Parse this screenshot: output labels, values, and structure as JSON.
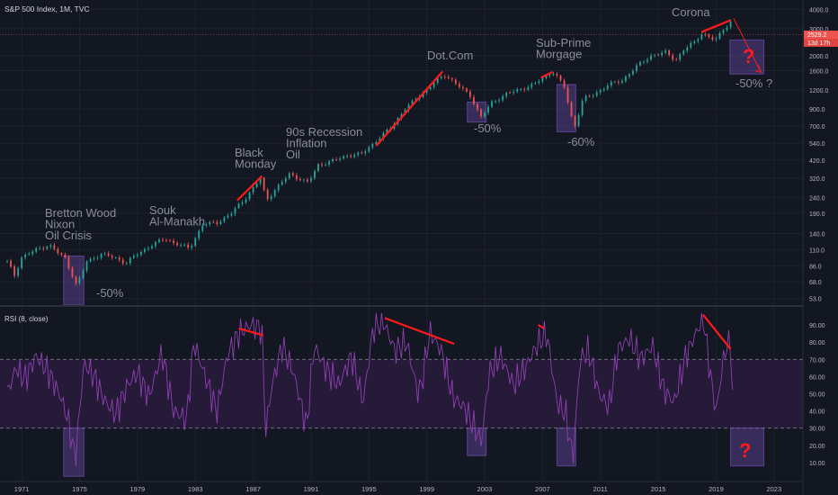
{
  "header": {
    "title": "S&P 500 Index, 1M, TVC"
  },
  "price_tag": {
    "value": "2529.2",
    "countdown": "13d 17h"
  },
  "colors": {
    "up": "#26a69a",
    "down": "#ef5350",
    "annotation": "#ff1a1a",
    "rsi_line": "#8e3fb0",
    "rsi_band": "#2a1b3d",
    "box": "#7e57c2",
    "label": "#8a8e99",
    "axis_text": "#b2b5be",
    "bg": "#131722",
    "grid": "#1e222d"
  },
  "annotations": [
    {
      "id": "bretton",
      "lines": [
        "Bretton Wood",
        "Nixon",
        "Oil Crisis"
      ]
    },
    {
      "id": "souk",
      "lines": [
        "Souk",
        "Al-Manakh"
      ]
    },
    {
      "id": "black",
      "lines": [
        "Black",
        "Monday"
      ]
    },
    {
      "id": "ninety",
      "lines": [
        "90s Recession",
        "Inflation",
        "Oil"
      ]
    },
    {
      "id": "dotcom",
      "lines": [
        "Dot.Com"
      ]
    },
    {
      "id": "subprime",
      "lines": [
        "Sub-Prime",
        "Morgage"
      ]
    },
    {
      "id": "corona",
      "lines": [
        "Corona"
      ]
    },
    {
      "id": "drop1974",
      "lines": [
        "-50%"
      ]
    },
    {
      "id": "drop2002",
      "lines": [
        "-50%"
      ]
    },
    {
      "id": "drop2008",
      "lines": [
        "-60%"
      ]
    },
    {
      "id": "drop2020",
      "lines": [
        "-50% ?"
      ]
    }
  ],
  "question_marks": [
    "?",
    "?"
  ],
  "chart_data": [
    {
      "type": "line",
      "title": "S&P 500 Index, 1M, TVC",
      "y_scale": "log",
      "ylim": [
        50,
        4300
      ],
      "xlim": [
        1969.5,
        2025.0
      ],
      "y_ticks": [
        "4000.0",
        "3000.0",
        "2000.0",
        "1600.0",
        "1200.0",
        "900.0",
        "700.0",
        "540.0",
        "420.0",
        "320.0",
        "240.0",
        "190.0",
        "140.0",
        "110.0",
        "86.0",
        "68.0",
        "53.0"
      ],
      "x_ticks": [
        "1971",
        "1975",
        "1979",
        "1983",
        "1987",
        "1991",
        "1995",
        "1999",
        "2003",
        "2007",
        "2011",
        "2015",
        "2019",
        "2023"
      ],
      "series": [
        {
          "x": [
            1970.0,
            1970.5,
            1971.0,
            1972.0,
            1972.9,
            1973.5,
            1974.0,
            1974.5,
            1974.8,
            1975.5,
            1976.5,
            1977.5,
            1978.2,
            1979.0,
            1980.0,
            1980.9,
            1981.5,
            1982.6,
            1983.5,
            1984.5,
            1985.5,
            1986.5,
            1987.6,
            1987.85,
            1988.5,
            1989.5,
            1990.8,
            1991.5,
            1992.5,
            1993.5,
            1994.5,
            1995.5,
            1996.5,
            1997.5,
            1998.5,
            1999.5,
            2000.2,
            2000.7,
            2001.5,
            2002.0,
            2002.75,
            2003.5,
            2004.5,
            2005.5,
            2006.5,
            2007.5,
            2007.8,
            2008.5,
            2009.0,
            2009.2,
            2009.8,
            2010.5,
            2011.5,
            2012.5,
            2013.5,
            2014.5,
            2015.5,
            2016.2,
            2016.8,
            2017.5,
            2018.0,
            2018.95,
            2019.5,
            2020.1,
            2020.2
          ],
          "values": [
            92,
            75,
            98,
            110,
            118,
            105,
            97,
            75,
            64,
            92,
            103,
            97,
            90,
            103,
            118,
            130,
            122,
            112,
            160,
            165,
            190,
            240,
            330,
            225,
            270,
            340,
            300,
            390,
            415,
            450,
            460,
            560,
            680,
            900,
            1100,
            1330,
            1500,
            1400,
            1200,
            1100,
            800,
            990,
            1130,
            1210,
            1320,
            1530,
            1560,
            1250,
            800,
            680,
            1050,
            1110,
            1290,
            1380,
            1700,
            2000,
            2100,
            1870,
            2200,
            2450,
            2800,
            2500,
            2980,
            3380,
            2529
          ]
        }
      ]
    },
    {
      "type": "line",
      "title": "RSI (8, close)",
      "ylim": [
        0,
        100
      ],
      "xlim": [
        1969.5,
        2025.0
      ],
      "y_ticks": [
        "90.00",
        "80.00",
        "70.00",
        "60.00",
        "50.00",
        "40.00",
        "30.00",
        "20.00",
        "10.00"
      ],
      "levels": [
        70,
        30
      ],
      "series": [
        {
          "x": [
            1970.0,
            1970.6,
            1971.2,
            1972.0,
            1972.9,
            1973.7,
            1974.2,
            1974.7,
            1975.3,
            1976.0,
            1976.8,
            1977.5,
            1978.3,
            1979.0,
            1979.8,
            1980.7,
            1981.5,
            1982.4,
            1982.9,
            1983.6,
            1984.5,
            1985.2,
            1986.0,
            1986.8,
            1987.6,
            1987.85,
            1988.3,
            1989.0,
            1989.8,
            1990.7,
            1991.2,
            1992.0,
            1992.9,
            1993.8,
            1994.6,
            1995.3,
            1996.0,
            1996.8,
            1997.6,
            1998.4,
            1998.7,
            1999.2,
            2000.0,
            2000.8,
            2001.6,
            2002.3,
            2002.8,
            2003.3,
            2004.1,
            2005.0,
            2005.8,
            2006.6,
            2007.3,
            2008.0,
            2008.6,
            2009.1,
            2009.6,
            2010.2,
            2010.9,
            2011.6,
            2012.2,
            2013.0,
            2013.8,
            2014.6,
            2015.4,
            2016.1,
            2016.9,
            2017.6,
            2018.1,
            2018.7,
            2019.0,
            2019.6,
            2020.0,
            2020.2
          ],
          "values": [
            50,
            65,
            58,
            72,
            62,
            48,
            35,
            12,
            68,
            60,
            45,
            38,
            55,
            62,
            48,
            74,
            40,
            35,
            80,
            62,
            40,
            72,
            85,
            90,
            88,
            28,
            55,
            78,
            62,
            30,
            78,
            65,
            55,
            72,
            45,
            88,
            92,
            75,
            80,
            50,
            58,
            86,
            75,
            48,
            42,
            30,
            22,
            62,
            72,
            55,
            65,
            78,
            85,
            45,
            38,
            12,
            70,
            75,
            50,
            42,
            76,
            82,
            70,
            78,
            52,
            45,
            72,
            85,
            95,
            55,
            40,
            75,
            80,
            30
          ]
        }
      ]
    }
  ]
}
